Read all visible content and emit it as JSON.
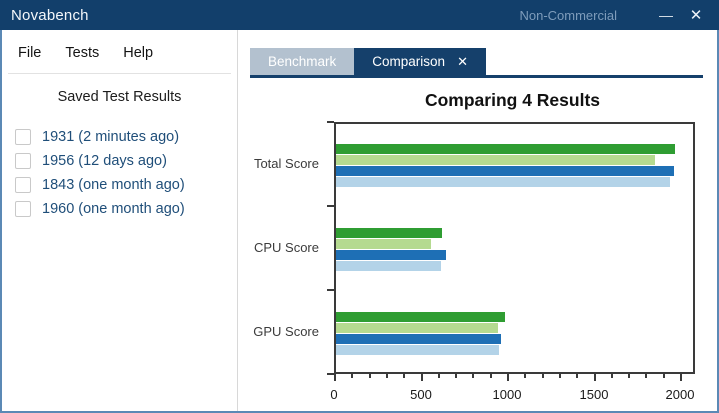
{
  "window": {
    "title": "Novabench",
    "license_label": "Non-Commercial",
    "minimize_icon": "—",
    "close_icon": "✕"
  },
  "menu": {
    "items": [
      {
        "label": "File"
      },
      {
        "label": "Tests"
      },
      {
        "label": "Help"
      }
    ]
  },
  "sidebar": {
    "heading": "Saved Test Results",
    "results": [
      {
        "label": "1931 (2 minutes ago)",
        "checked": false
      },
      {
        "label": "1956 (12 days ago)",
        "checked": false
      },
      {
        "label": "1843 (one month ago)",
        "checked": false
      },
      {
        "label": "1960 (one month ago)",
        "checked": false
      }
    ]
  },
  "tabs": [
    {
      "label": "Benchmark",
      "active": false
    },
    {
      "label": "Comparison",
      "active": true,
      "close_icon": "✕"
    }
  ],
  "chart_data": {
    "type": "bar",
    "orientation": "horizontal",
    "title": "Comparing 4 Results",
    "categories": [
      "Total Score",
      "CPU Score",
      "GPU Score"
    ],
    "series": [
      {
        "name": "dark-green-result",
        "color": "#2f9d32",
        "values": [
          1960,
          615,
          975
        ]
      },
      {
        "name": "light-green-result",
        "color": "#b5da90",
        "values": [
          1843,
          550,
          935
        ]
      },
      {
        "name": "dark-blue-result",
        "color": "#1e6fb5",
        "values": [
          1956,
          635,
          955
        ]
      },
      {
        "name": "light-blue-result",
        "color": "#b3d3e8",
        "values": [
          1931,
          605,
          945
        ]
      }
    ],
    "xlim": [
      0,
      2080
    ],
    "x_ticks": [
      0,
      500,
      1000,
      1500,
      2000
    ],
    "x_minor_tick_interval": 100,
    "grid": false,
    "legend": false
  },
  "colors": {
    "titlebar": "#123f6b",
    "active_tab": "#15406b",
    "inactive_tab": "#b3c1cf",
    "sidebar_link": "#1f4e79",
    "window_border": "#5b89b5"
  }
}
